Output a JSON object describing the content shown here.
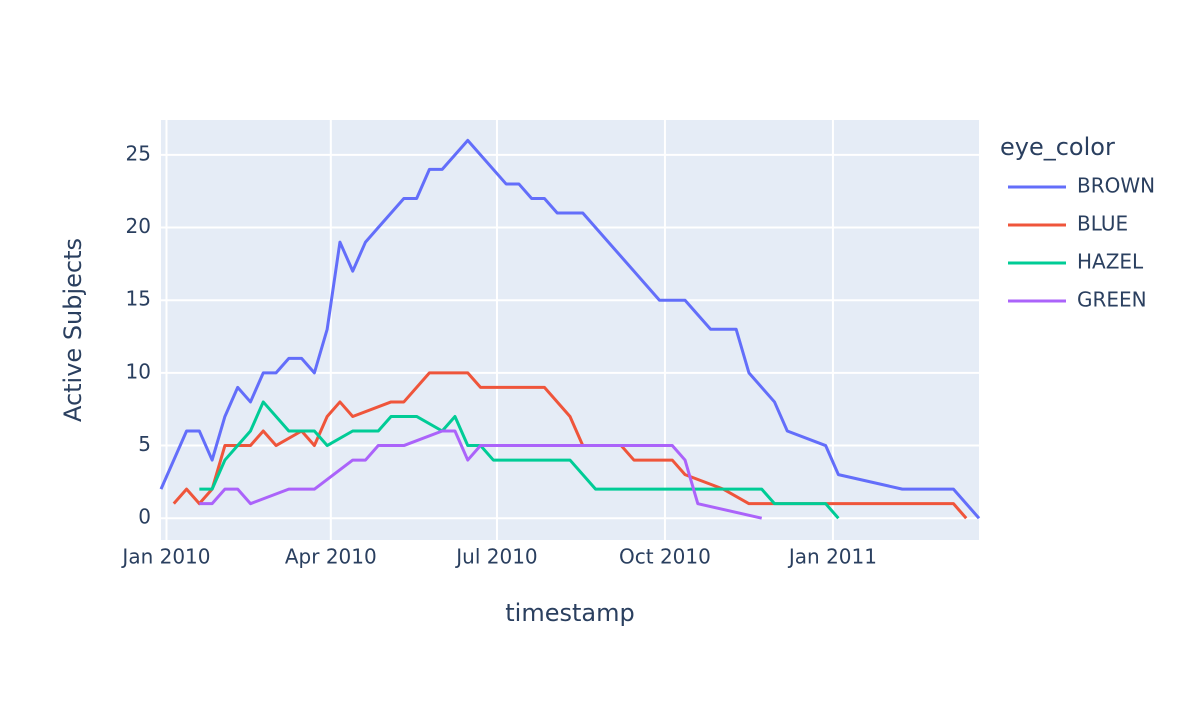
{
  "chart_data": {
    "type": "line",
    "xlabel": "timestamp",
    "ylabel": "Active Subjects",
    "legend_title": "eye_color",
    "xlim": [
      "2009-12-29",
      "2011-03-22"
    ],
    "ylim": [
      -1.5,
      27.4
    ],
    "xticks": [
      {
        "value": "2010-01-01",
        "label": "Jan 2010"
      },
      {
        "value": "2010-04-01",
        "label": "Apr 2010"
      },
      {
        "value": "2010-07-01",
        "label": "Jul 2010"
      },
      {
        "value": "2010-10-01",
        "label": "Oct 2010"
      },
      {
        "value": "2011-01-01",
        "label": "Jan 2011"
      }
    ],
    "yticks": [
      0,
      5,
      10,
      15,
      20,
      25
    ],
    "grid": true,
    "legend": "right",
    "series": [
      {
        "name": "BROWN",
        "color": "#636efa",
        "x": [
          "2009-12-29",
          "2010-01-12",
          "2010-01-19",
          "2010-01-26",
          "2010-02-02",
          "2010-02-09",
          "2010-02-16",
          "2010-02-23",
          "2010-03-02",
          "2010-03-09",
          "2010-03-16",
          "2010-03-23",
          "2010-03-30",
          "2010-04-06",
          "2010-04-13",
          "2010-04-20",
          "2010-04-27",
          "2010-05-04",
          "2010-05-11",
          "2010-05-18",
          "2010-05-25",
          "2010-06-01",
          "2010-06-15",
          "2010-07-06",
          "2010-07-13",
          "2010-07-20",
          "2010-07-27",
          "2010-08-03",
          "2010-08-17",
          "2010-09-28",
          "2010-10-12",
          "2010-10-26",
          "2010-11-09",
          "2010-11-16",
          "2010-11-30",
          "2010-12-07",
          "2010-12-28",
          "2011-01-04",
          "2011-02-08",
          "2011-03-08",
          "2011-03-22"
        ],
        "values": [
          2,
          6,
          6,
          4,
          7,
          9,
          8,
          10,
          10,
          11,
          11,
          10,
          13,
          19,
          17,
          19,
          20,
          21,
          22,
          22,
          24,
          24,
          26,
          23,
          23,
          22,
          22,
          21,
          21,
          15,
          15,
          13,
          13,
          10,
          8,
          6,
          5,
          3,
          2,
          2,
          0
        ]
      },
      {
        "name": "BLUE",
        "color": "#ef553b",
        "x": [
          "2010-01-05",
          "2010-01-12",
          "2010-01-19",
          "2010-01-26",
          "2010-02-02",
          "2010-02-16",
          "2010-02-23",
          "2010-03-02",
          "2010-03-16",
          "2010-03-23",
          "2010-03-30",
          "2010-04-06",
          "2010-04-13",
          "2010-05-04",
          "2010-05-11",
          "2010-05-25",
          "2010-06-15",
          "2010-06-22",
          "2010-07-27",
          "2010-08-10",
          "2010-08-17",
          "2010-09-07",
          "2010-09-14",
          "2010-10-05",
          "2010-10-12",
          "2010-11-02",
          "2010-11-16",
          "2011-03-08",
          "2011-03-15"
        ],
        "values": [
          1,
          2,
          1,
          2,
          5,
          5,
          6,
          5,
          6,
          5,
          7,
          8,
          7,
          8,
          8,
          10,
          10,
          9,
          9,
          7,
          5,
          5,
          4,
          4,
          3,
          2,
          1,
          1,
          0
        ]
      },
      {
        "name": "HAZEL",
        "color": "#00cc96",
        "x": [
          "2010-01-19",
          "2010-01-26",
          "2010-02-02",
          "2010-02-09",
          "2010-02-16",
          "2010-02-23",
          "2010-03-09",
          "2010-03-23",
          "2010-03-30",
          "2010-04-13",
          "2010-04-27",
          "2010-05-04",
          "2010-05-18",
          "2010-06-01",
          "2010-06-08",
          "2010-06-15",
          "2010-06-22",
          "2010-06-29",
          "2010-08-10",
          "2010-08-24",
          "2010-11-23",
          "2010-11-30",
          "2010-12-28",
          "2011-01-04"
        ],
        "values": [
          2,
          2,
          4,
          5,
          6,
          8,
          6,
          6,
          5,
          6,
          6,
          7,
          7,
          6,
          7,
          5,
          5,
          4,
          4,
          2,
          2,
          1,
          1,
          0
        ]
      },
      {
        "name": "GREEN",
        "color": "#ab63fa",
        "x": [
          "2010-01-19",
          "2010-01-26",
          "2010-02-02",
          "2010-02-09",
          "2010-02-16",
          "2010-03-09",
          "2010-03-23",
          "2010-04-13",
          "2010-04-20",
          "2010-04-27",
          "2010-05-11",
          "2010-06-01",
          "2010-06-08",
          "2010-06-15",
          "2010-06-22",
          "2010-10-05",
          "2010-10-12",
          "2010-10-19",
          "2010-11-23"
        ],
        "values": [
          1,
          1,
          2,
          2,
          1,
          2,
          2,
          4,
          4,
          5,
          5,
          6,
          6,
          4,
          5,
          5,
          4,
          1,
          0
        ]
      }
    ]
  }
}
